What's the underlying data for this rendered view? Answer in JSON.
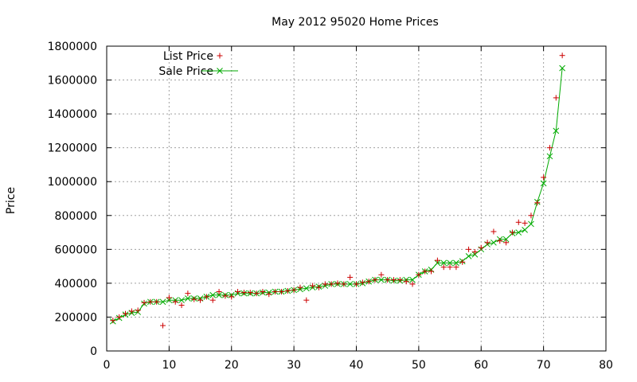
{
  "chart_data": {
    "type": "scatter",
    "title": "May 2012 95020 Home Prices",
    "xlabel": "",
    "ylabel": "Price",
    "xlim": [
      0,
      80
    ],
    "ylim": [
      0,
      1800000
    ],
    "x_ticks": [
      "0",
      "10",
      "20",
      "30",
      "40",
      "50",
      "60",
      "70",
      "80"
    ],
    "y_ticks": [
      "0",
      "200000",
      "400000",
      "600000",
      "800000",
      "1000000",
      "1200000",
      "1400000",
      "1600000",
      "1800000"
    ],
    "grid": true,
    "legend_position": "top-left",
    "series": [
      {
        "name": "List Price",
        "style": "points",
        "marker": "plus",
        "color": "#cc0000",
        "x": [
          1,
          2,
          3,
          4,
          5,
          6,
          7,
          8,
          9,
          10,
          11,
          12,
          13,
          14,
          15,
          16,
          17,
          18,
          19,
          20,
          21,
          22,
          23,
          24,
          25,
          26,
          27,
          28,
          29,
          30,
          31,
          32,
          33,
          34,
          35,
          36,
          37,
          38,
          39,
          40,
          41,
          42,
          43,
          44,
          45,
          46,
          47,
          48,
          49,
          50,
          51,
          52,
          53,
          54,
          55,
          56,
          57,
          58,
          59,
          60,
          61,
          62,
          63,
          64,
          65,
          66,
          67,
          68,
          69,
          70,
          71,
          72,
          73
        ],
        "values": [
          180000,
          200000,
          220000,
          235000,
          240000,
          285000,
          290000,
          290000,
          150000,
          315000,
          290000,
          270000,
          340000,
          305000,
          300000,
          320000,
          300000,
          350000,
          325000,
          320000,
          350000,
          345000,
          345000,
          340000,
          350000,
          335000,
          350000,
          350000,
          355000,
          360000,
          375000,
          300000,
          385000,
          375000,
          395000,
          395000,
          400000,
          395000,
          435000,
          395000,
          405000,
          410000,
          420000,
          450000,
          420000,
          420000,
          420000,
          410000,
          395000,
          450000,
          470000,
          470000,
          535000,
          495000,
          495000,
          495000,
          525000,
          600000,
          585000,
          610000,
          640000,
          705000,
          650000,
          640000,
          700000,
          760000,
          755000,
          800000,
          875000,
          1025000,
          1200000,
          1495000,
          1745000
        ]
      },
      {
        "name": "Sale Price",
        "style": "linespoints",
        "marker": "x",
        "color": "#00aa00",
        "x": [
          1,
          2,
          3,
          4,
          5,
          6,
          7,
          8,
          9,
          10,
          11,
          12,
          13,
          14,
          15,
          16,
          17,
          18,
          19,
          20,
          21,
          22,
          23,
          24,
          25,
          26,
          27,
          28,
          29,
          30,
          31,
          32,
          33,
          34,
          35,
          36,
          37,
          38,
          39,
          40,
          41,
          42,
          43,
          44,
          45,
          46,
          47,
          48,
          49,
          50,
          51,
          52,
          53,
          54,
          55,
          56,
          57,
          58,
          59,
          60,
          61,
          62,
          63,
          64,
          65,
          66,
          67,
          68,
          69,
          70,
          71,
          72,
          73
        ],
        "values": [
          175000,
          195000,
          215000,
          225000,
          230000,
          280000,
          290000,
          290000,
          290000,
          300000,
          300000,
          300000,
          310000,
          310000,
          310000,
          320000,
          330000,
          330000,
          330000,
          330000,
          340000,
          340000,
          340000,
          340000,
          345000,
          345000,
          350000,
          350000,
          355000,
          360000,
          365000,
          370000,
          375000,
          380000,
          385000,
          395000,
          395000,
          395000,
          395000,
          395000,
          400000,
          410000,
          420000,
          420000,
          420000,
          415000,
          415000,
          420000,
          420000,
          450000,
          470000,
          480000,
          520000,
          520000,
          520000,
          520000,
          530000,
          560000,
          570000,
          600000,
          630000,
          640000,
          660000,
          660000,
          695000,
          700000,
          715000,
          750000,
          880000,
          990000,
          1150000,
          1300000,
          1670000
        ]
      }
    ]
  }
}
